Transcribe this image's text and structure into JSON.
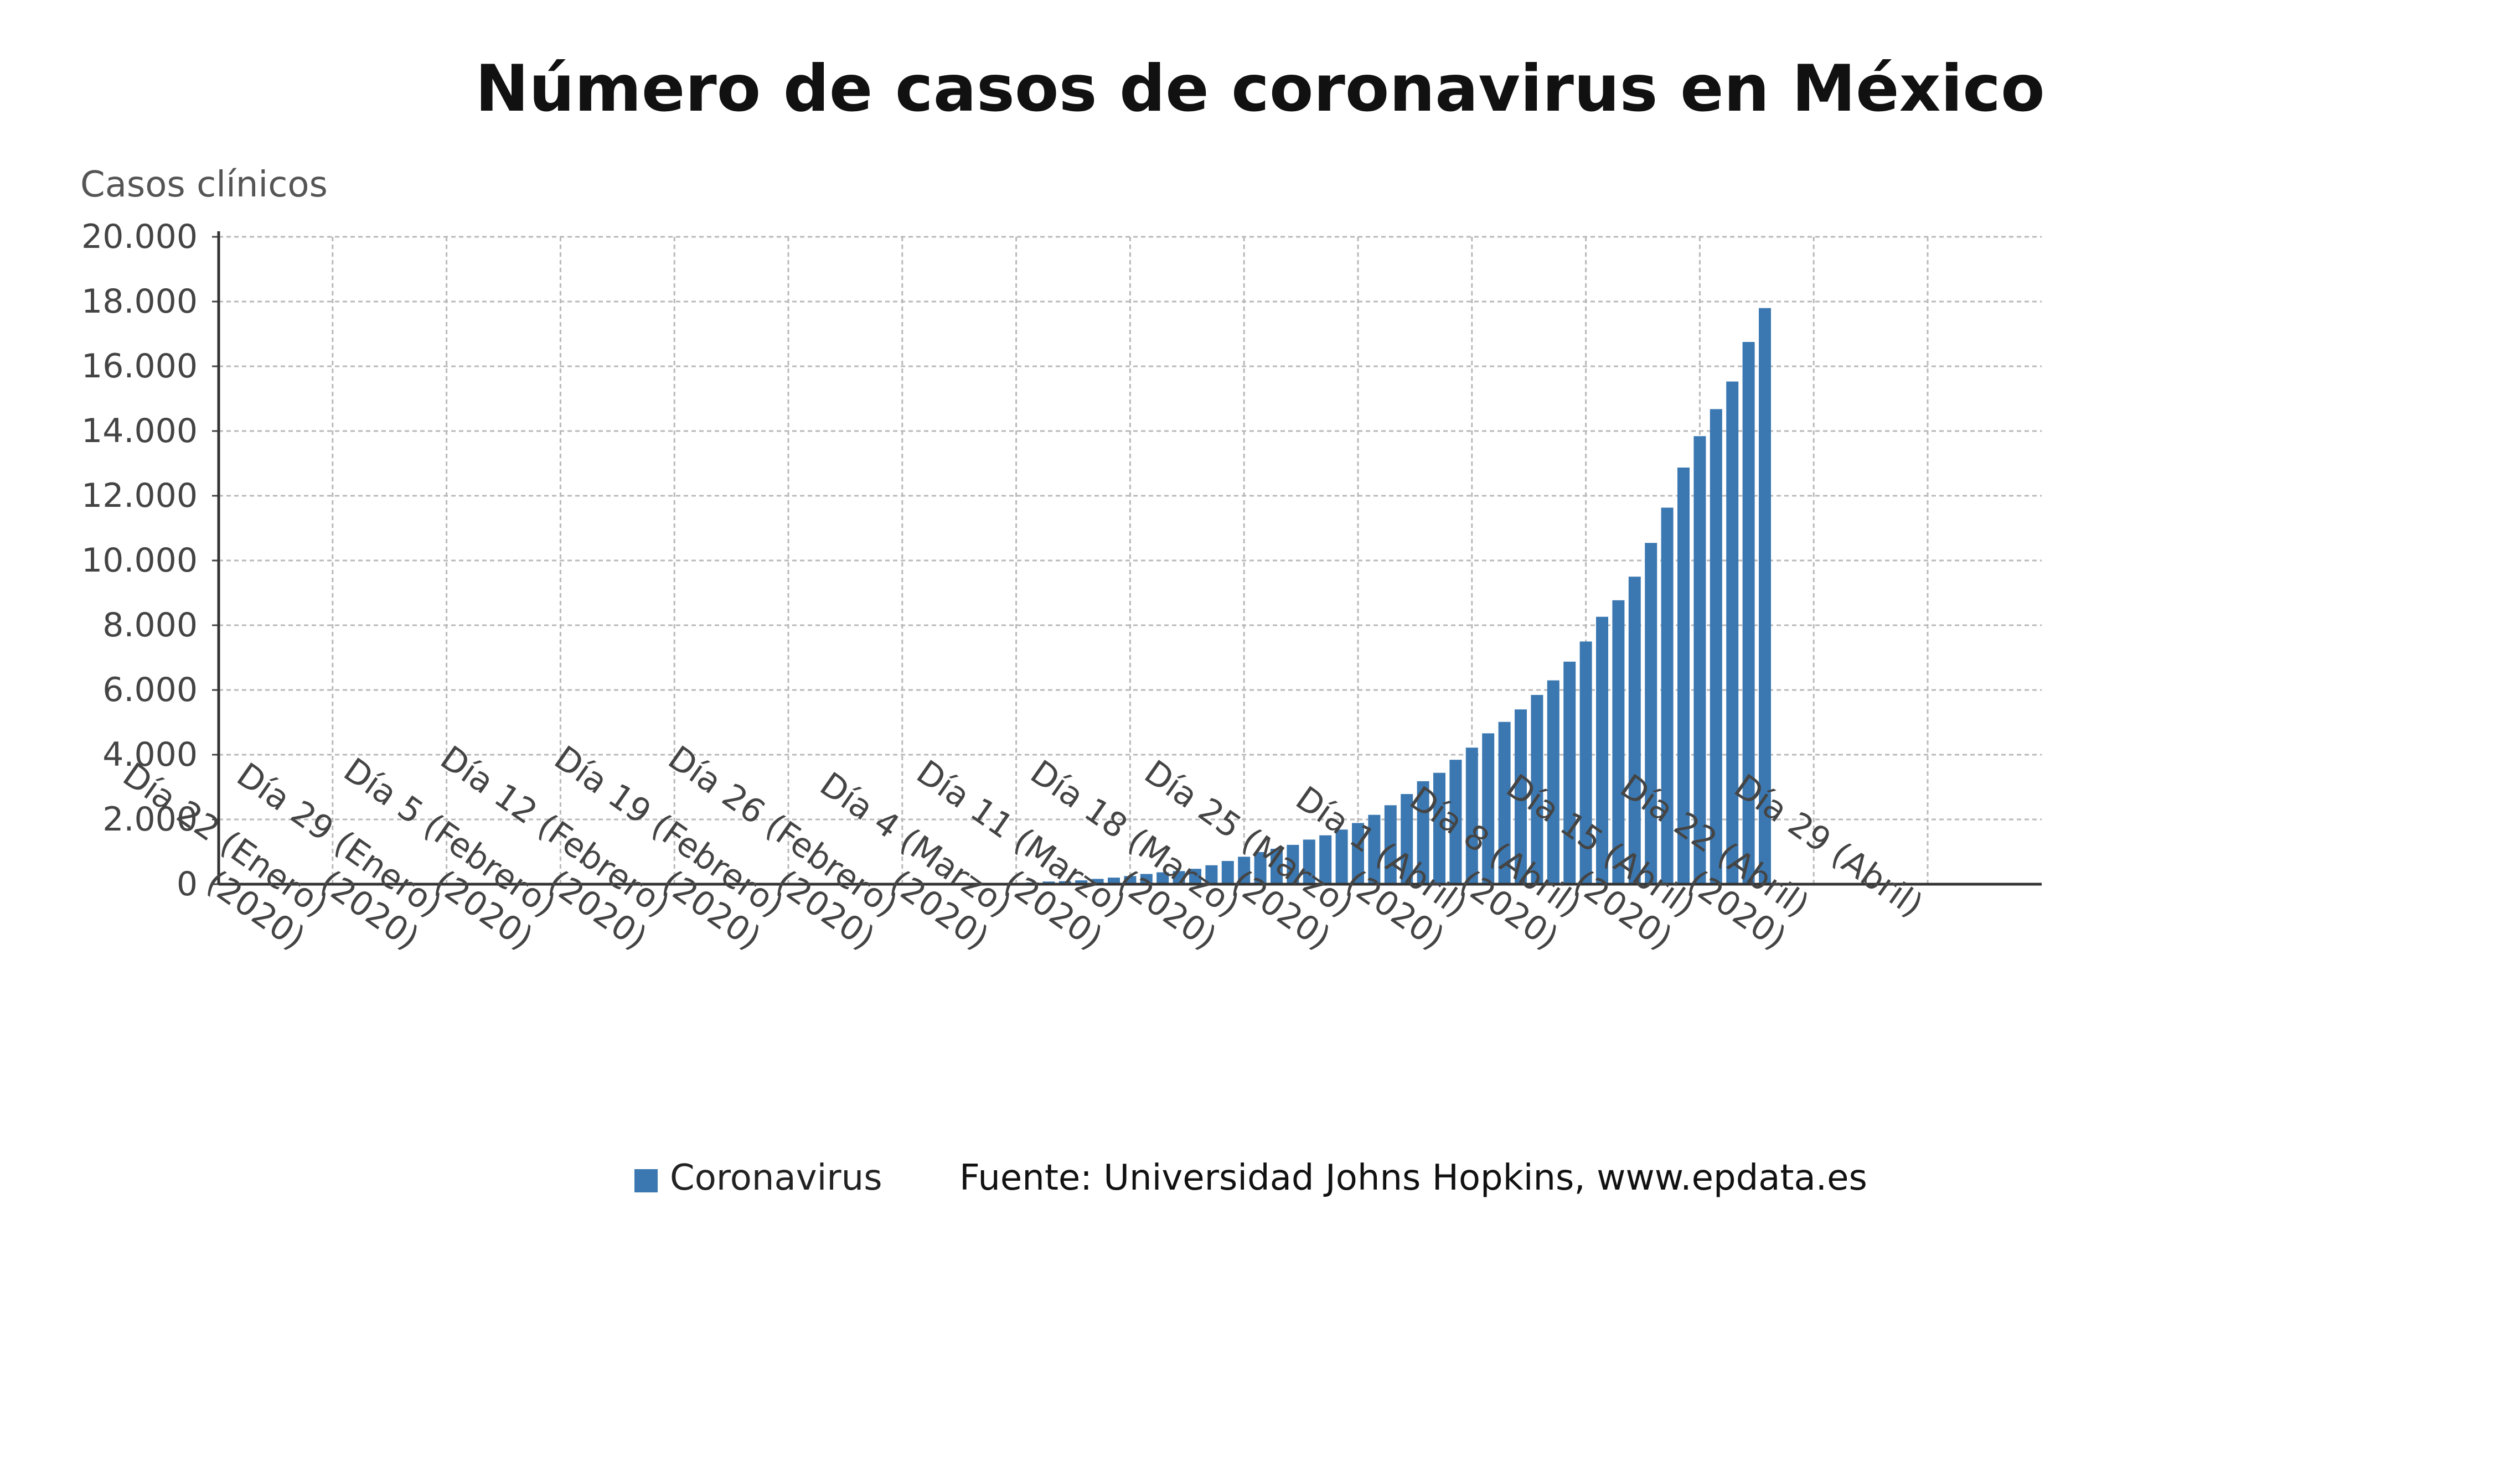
{
  "chart_data": {
    "type": "bar",
    "title": "Número de casos de coronavirus en México",
    "ylabel": "Casos clínicos",
    "xlabel": "",
    "ylim": [
      0,
      20000
    ],
    "yticks": [
      "0",
      "2.000",
      "4.000",
      "6.000",
      "8.000",
      "10.000",
      "12.000",
      "14.000",
      "16.000",
      "18.000",
      "20.000"
    ],
    "x_ticks": [
      {
        "line1": "Día 22 (Enero)",
        "line2": "(2020)"
      },
      {
        "line1": "Día 29 (Enero)",
        "line2": "(2020)"
      },
      {
        "line1": "Día 5 (Febrero)",
        "line2": "(2020)"
      },
      {
        "line1": "Día 12 (Febrero)",
        "line2": "(2020)"
      },
      {
        "line1": "Día 19 (Febrero)",
        "line2": "(2020)"
      },
      {
        "line1": "Día 26 (Febrero)",
        "line2": "(2020)"
      },
      {
        "line1": "Día 4 (Marzo)",
        "line2": "(2020)"
      },
      {
        "line1": "Día 11 (Marzo)",
        "line2": "(2020)"
      },
      {
        "line1": "Día 18 (Marzo)",
        "line2": "(2020)"
      },
      {
        "line1": "Día 25 (Marzo)",
        "line2": "(2020)"
      },
      {
        "line1": "Día 1 (Abril)",
        "line2": "(2020)"
      },
      {
        "line1": "Día 8 (Abril)",
        "line2": "(2020)"
      },
      {
        "line1": "Día 15 (Abril)",
        "line2": "(2020)"
      },
      {
        "line1": "Día 22 (Abril)",
        "line2": "(2020)"
      },
      {
        "line1": "Día 29 (Abril)",
        "line2": ""
      }
    ],
    "grid": true,
    "legend_position": "bottom-center",
    "series": [
      {
        "name": "Coronavirus",
        "color": "#3b78b1",
        "values": [
          0,
          0,
          0,
          0,
          0,
          0,
          0,
          0,
          0,
          0,
          0,
          0,
          0,
          0,
          0,
          0,
          0,
          0,
          0,
          0,
          0,
          0,
          0,
          0,
          0,
          0,
          0,
          0,
          0,
          0,
          0,
          0,
          0,
          0,
          0,
          0,
          0,
          1,
          4,
          5,
          5,
          5,
          5,
          6,
          7,
          7,
          8,
          12,
          26,
          41,
          53,
          82,
          93,
          118,
          164,
          203,
          251,
          316,
          367,
          405,
          475,
          585,
          717,
          848,
          993,
          1094,
          1215,
          1378,
          1510,
          1688,
          1890,
          2143,
          2439,
          2785,
          3181,
          3441,
          3844,
          4219,
          4661,
          5014,
          5399,
          5847,
          6297,
          6875,
          7497,
          8261,
          8772,
          9501,
          10544,
          11633,
          12872,
          13842,
          14677,
          15529,
          16752,
          17799
        ]
      }
    ],
    "legend_entry": "Coronavirus",
    "source": "Fuente: Universidad Johns Hopkins, www.epdata.es"
  }
}
